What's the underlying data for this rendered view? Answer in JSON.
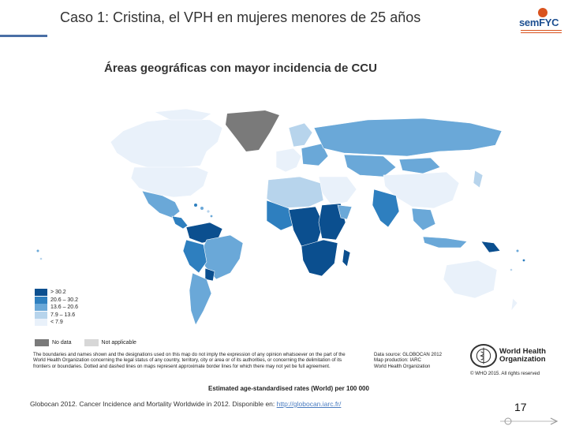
{
  "slide": {
    "title": "Caso 1: Cristina, el VPH en mujeres menores de 25 años",
    "map_title": "Áreas geográficas con mayor incidencia de CCU",
    "page_number": "17"
  },
  "logo": {
    "text": "semFYC"
  },
  "legend": {
    "items": [
      {
        "label": "> 30.2",
        "color": "#0b4f8f"
      },
      {
        "label": "20.6 – 30.2",
        "color": "#2e7fbf"
      },
      {
        "label": "13.6 – 20.6",
        "color": "#6aa8d8"
      },
      {
        "label": "7.9 – 13.6",
        "color": "#b7d4ec"
      },
      {
        "label": "< 7.9",
        "color": "#e9f1fa"
      }
    ],
    "no_data_label": "No data",
    "no_data_color": "#7a7a7a",
    "not_applicable_label": "Not applicable",
    "not_applicable_color": "#d7d7d7"
  },
  "disclaimer": "The boundaries and names shown and the designations used on this map do not imply the expression of any opinion whatsoever on the part of the World Health Organization concerning the legal status of any country, territory, city or area or of its authorities, or concerning the delimitation of its frontiers or boundaries. Dotted and dashed lines on maps represent approximate border lines for which there may not yet be full agreement.",
  "source": {
    "line1": "Data source: GLOBOCAN 2012",
    "line2": "Map production: IARC",
    "line3": "World Health Organization"
  },
  "who": {
    "line1": "World Health",
    "line2": "Organization",
    "copyright": "© WHO 2015. All rights reserved"
  },
  "rates_label": "Estimated age-standardised rates (World) per 100 000",
  "citation": {
    "text": "Globocan 2012. Cancer Incidence and Mortality Worldwide in 2012. Disponible en: ",
    "link": "http://globocan.iarc.fr/"
  },
  "map": {
    "ocean_color": "#ffffff",
    "border_color": "#ffffff"
  }
}
